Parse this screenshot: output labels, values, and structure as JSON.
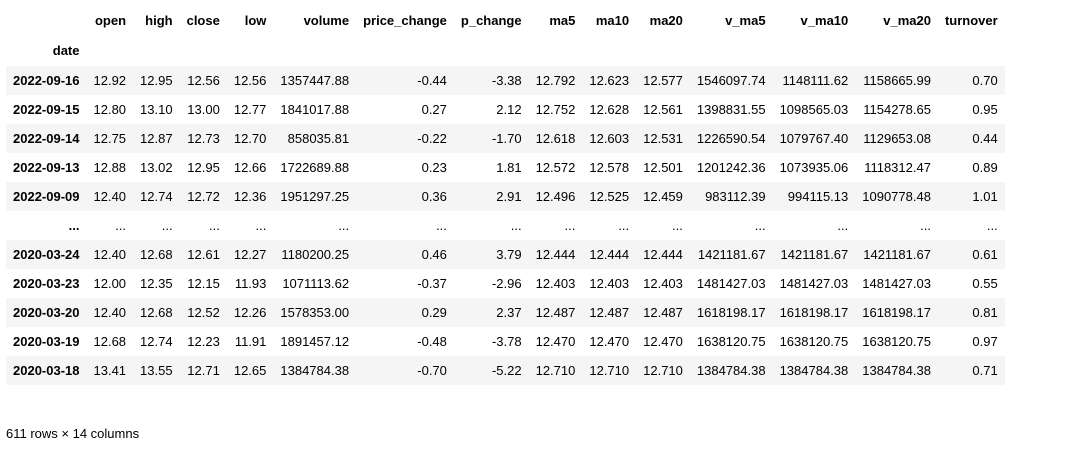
{
  "columns": [
    "open",
    "high",
    "close",
    "low",
    "volume",
    "price_change",
    "p_change",
    "ma5",
    "ma10",
    "ma20",
    "v_ma5",
    "v_ma10",
    "v_ma20",
    "turnover"
  ],
  "index_name": "date",
  "rows": [
    {
      "date": "2022-09-16",
      "cells": [
        "12.92",
        "12.95",
        "12.56",
        "12.56",
        "1357447.88",
        "-0.44",
        "-3.38",
        "12.792",
        "12.623",
        "12.577",
        "1546097.74",
        "1148111.62",
        "1158665.99",
        "0.70"
      ]
    },
    {
      "date": "2022-09-15",
      "cells": [
        "12.80",
        "13.10",
        "13.00",
        "12.77",
        "1841017.88",
        "0.27",
        "2.12",
        "12.752",
        "12.628",
        "12.561",
        "1398831.55",
        "1098565.03",
        "1154278.65",
        "0.95"
      ]
    },
    {
      "date": "2022-09-14",
      "cells": [
        "12.75",
        "12.87",
        "12.73",
        "12.70",
        "858035.81",
        "-0.22",
        "-1.70",
        "12.618",
        "12.603",
        "12.531",
        "1226590.54",
        "1079767.40",
        "1129653.08",
        "0.44"
      ]
    },
    {
      "date": "2022-09-13",
      "cells": [
        "12.88",
        "13.02",
        "12.95",
        "12.66",
        "1722689.88",
        "0.23",
        "1.81",
        "12.572",
        "12.578",
        "12.501",
        "1201242.36",
        "1073935.06",
        "1118312.47",
        "0.89"
      ]
    },
    {
      "date": "2022-09-09",
      "cells": [
        "12.40",
        "12.74",
        "12.72",
        "12.36",
        "1951297.25",
        "0.36",
        "2.91",
        "12.496",
        "12.525",
        "12.459",
        "983112.39",
        "994115.13",
        "1090778.48",
        "1.01"
      ]
    },
    {
      "date": "...",
      "cells": [
        "...",
        "...",
        "...",
        "...",
        "...",
        "...",
        "...",
        "...",
        "...",
        "...",
        "...",
        "...",
        "...",
        "..."
      ]
    },
    {
      "date": "2020-03-24",
      "cells": [
        "12.40",
        "12.68",
        "12.61",
        "12.27",
        "1180200.25",
        "0.46",
        "3.79",
        "12.444",
        "12.444",
        "12.444",
        "1421181.67",
        "1421181.67",
        "1421181.67",
        "0.61"
      ]
    },
    {
      "date": "2020-03-23",
      "cells": [
        "12.00",
        "12.35",
        "12.15",
        "11.93",
        "1071113.62",
        "-0.37",
        "-2.96",
        "12.403",
        "12.403",
        "12.403",
        "1481427.03",
        "1481427.03",
        "1481427.03",
        "0.55"
      ]
    },
    {
      "date": "2020-03-20",
      "cells": [
        "12.40",
        "12.68",
        "12.52",
        "12.26",
        "1578353.00",
        "0.29",
        "2.37",
        "12.487",
        "12.487",
        "12.487",
        "1618198.17",
        "1618198.17",
        "1618198.17",
        "0.81"
      ]
    },
    {
      "date": "2020-03-19",
      "cells": [
        "12.68",
        "12.74",
        "12.23",
        "11.91",
        "1891457.12",
        "-0.48",
        "-3.78",
        "12.470",
        "12.470",
        "12.470",
        "1638120.75",
        "1638120.75",
        "1638120.75",
        "0.97"
      ]
    },
    {
      "date": "2020-03-18",
      "cells": [
        "13.41",
        "13.55",
        "12.71",
        "12.65",
        "1384784.38",
        "-0.70",
        "-5.22",
        "12.710",
        "12.710",
        "12.710",
        "1384784.38",
        "1384784.38",
        "1384784.38",
        "0.71"
      ]
    }
  ],
  "shape_text": "611 rows × 14 columns"
}
